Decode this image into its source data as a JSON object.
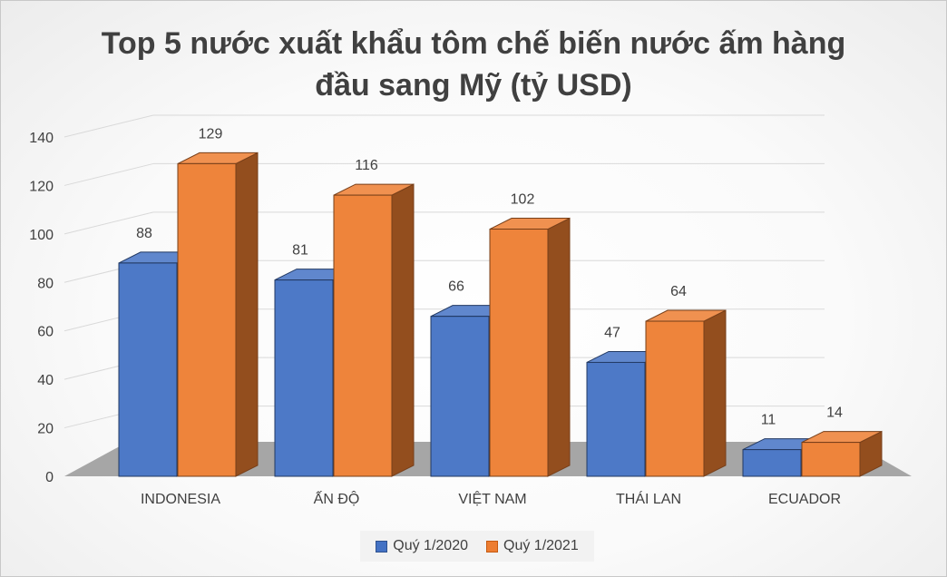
{
  "title_line1": "Top 5 nước xuất khẩu tôm chế biến nước ấm hàng",
  "title_line2": "đầu sang Mỹ (tỷ USD)",
  "chart_data": {
    "type": "bar",
    "title": "Top 5 nước xuất khẩu tôm chế biến nước ấm hàng đầu sang Mỹ (tỷ USD)",
    "categories": [
      "INDONESIA",
      "ẤN ĐỘ",
      "VIỆT NAM",
      "THÁI LAN",
      "ECUADOR"
    ],
    "series": [
      {
        "name": "Quý 1/2020",
        "values": [
          88,
          81,
          66,
          47,
          11
        ],
        "color": "#4472c4"
      },
      {
        "name": "Quý 1/2021",
        "values": [
          129,
          116,
          102,
          64,
          14
        ],
        "color": "#ed7d31"
      }
    ],
    "ylim": [
      0,
      140
    ],
    "yticks": [
      0,
      20,
      40,
      60,
      80,
      100,
      120,
      140
    ],
    "grid": true,
    "legend": "bottom",
    "style": "3d-clustered-column"
  }
}
